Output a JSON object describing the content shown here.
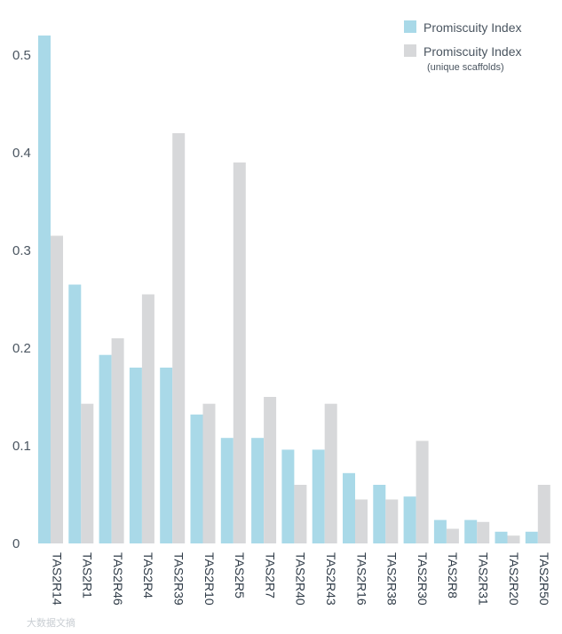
{
  "chart_data": {
    "type": "bar",
    "title": "",
    "xlabel": "",
    "ylabel": "",
    "ylim": [
      0,
      0.52
    ],
    "yticks": [
      "0",
      "0.1",
      "0.2",
      "0.3",
      "0.4",
      "0.5"
    ],
    "grid": false,
    "legend_position": "top-right",
    "categories": [
      "TAS2R14",
      "TAS2R1",
      "TAS2R46",
      "TAS2R4",
      "TAS2R39",
      "TAS2R10",
      "TAS2R5",
      "TAS2R7",
      "TAS2R40",
      "TAS2R43",
      "TAS2R16",
      "TAS2R38",
      "TAS2R30",
      "TAS2R8",
      "TAS2R31",
      "TAS2R20",
      "TAS2R50"
    ],
    "series": [
      {
        "name": "Promiscuity Index",
        "color": "#a9d9e8",
        "values": [
          0.52,
          0.265,
          0.193,
          0.18,
          0.18,
          0.132,
          0.108,
          0.108,
          0.096,
          0.096,
          0.072,
          0.06,
          0.048,
          0.024,
          0.024,
          0.012,
          0.012
        ]
      },
      {
        "name": "Promiscuity Index",
        "subname": "(unique scaffolds)",
        "color": "#d7d8da",
        "values": [
          0.315,
          0.143,
          0.21,
          0.255,
          0.42,
          0.143,
          0.39,
          0.15,
          0.06,
          0.143,
          0.045,
          0.045,
          0.105,
          0.015,
          0.022,
          0.008,
          0.06
        ]
      }
    ]
  },
  "watermark": "大数据文摘"
}
